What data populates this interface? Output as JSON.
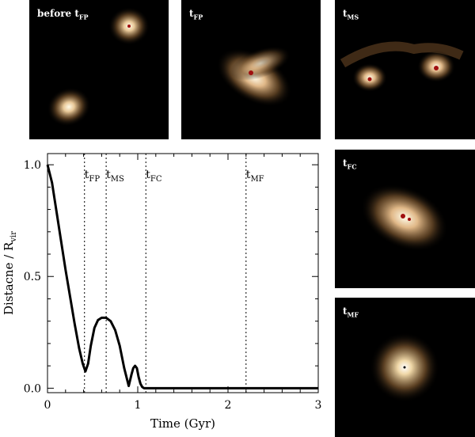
{
  "panels": [
    {
      "id": "before-fp",
      "label_main": "before t",
      "label_sub": "FP"
    },
    {
      "id": "fp",
      "label_main": "t",
      "label_sub": "FP"
    },
    {
      "id": "ms",
      "label_main": "t",
      "label_sub": "MS"
    },
    {
      "id": "fc",
      "label_main": "t",
      "label_sub": "FC"
    },
    {
      "id": "mf",
      "label_main": "t",
      "label_sub": "MF"
    }
  ],
  "colors": {
    "glow_core": "#fffbe8",
    "glow_mid": "#c8a070",
    "glow_outer": "#4a3018",
    "core_red": "#a01010",
    "line": "#000000"
  },
  "chart_data": {
    "type": "line",
    "xlabel": "Time (Gyr)",
    "ylabel_main": "Distacne / R",
    "ylabel_sub": "vir",
    "xlim": [
      0,
      3
    ],
    "ylim": [
      -0.02,
      1.05
    ],
    "xticks": [
      0,
      1,
      2,
      3
    ],
    "xtick_labels": [
      "0",
      "1",
      "2",
      "3"
    ],
    "yticks": [
      0.0,
      0.5,
      1.0
    ],
    "ytick_labels": [
      "0.0",
      "0.5",
      "1.0"
    ],
    "grid": false,
    "series": [
      {
        "x": [
          0.0,
          0.05,
          0.1,
          0.15,
          0.2,
          0.25,
          0.3,
          0.35,
          0.39,
          0.42,
          0.45,
          0.48,
          0.52,
          0.56,
          0.6,
          0.65,
          0.7,
          0.75,
          0.8,
          0.85,
          0.9,
          0.93,
          0.95,
          0.97,
          0.99,
          1.01,
          1.03,
          1.05,
          1.07,
          1.1,
          1.2,
          1.5,
          2.0,
          2.5,
          3.0
        ],
        "y": [
          1.0,
          0.92,
          0.79,
          0.66,
          0.53,
          0.41,
          0.29,
          0.18,
          0.11,
          0.075,
          0.11,
          0.19,
          0.27,
          0.305,
          0.315,
          0.315,
          0.3,
          0.26,
          0.19,
          0.09,
          0.01,
          0.06,
          0.09,
          0.1,
          0.09,
          0.05,
          0.02,
          0.005,
          0.0,
          0.0,
          0.0,
          0.0,
          0.0,
          0.0,
          0.0
        ]
      }
    ],
    "events": [
      {
        "x": 0.41,
        "label_main": "t",
        "label_sub": "FP"
      },
      {
        "x": 0.65,
        "label_main": "t",
        "label_sub": "MS"
      },
      {
        "x": 1.09,
        "label_main": "t",
        "label_sub": "FC"
      },
      {
        "x": 2.2,
        "label_main": "t",
        "label_sub": "MF"
      }
    ]
  }
}
